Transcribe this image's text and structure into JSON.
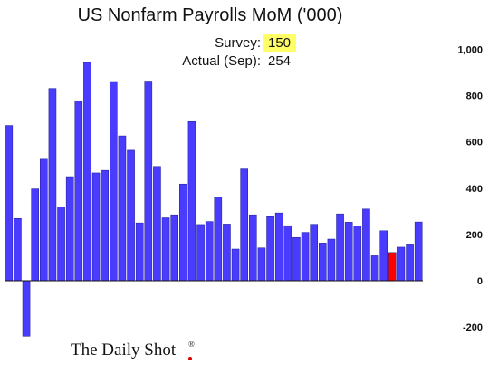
{
  "chart_data": {
    "type": "bar",
    "title": "US Nonfarm Payrolls MoM ('000)",
    "xlabel": "",
    "ylabel": "",
    "ylim": [
      -250,
      1050
    ],
    "yticks": [
      -200,
      0,
      200,
      400,
      600,
      800,
      1000
    ],
    "ytick_labels": [
      "-200",
      "0",
      "200",
      "400",
      "600",
      "800",
      "1,000"
    ],
    "y_axis_position": "right",
    "grid": false,
    "legend": "none",
    "bar_color": "#4a3cff",
    "highlight_color": "#ff0000",
    "highlight_index": 44,
    "values": [
      671,
      269,
      -240,
      397,
      525,
      831,
      319,
      450,
      778,
      943,
      466,
      477,
      861,
      626,
      564,
      250,
      863,
      494,
      272,
      285,
      418,
      688,
      243,
      256,
      361,
      245,
      137,
      483,
      285,
      142,
      277,
      293,
      238,
      187,
      209,
      244,
      163,
      180,
      289,
      253,
      236,
      310,
      108,
      216,
      122,
      145,
      159,
      254
    ]
  },
  "annotations": {
    "survey_label": "Survey:",
    "survey_value": "150",
    "survey_highlight": "#ffff66",
    "actual_label": "Actual (Sep):",
    "actual_value": "254"
  },
  "branding": {
    "text": "The Daily Shot",
    "mark": "®",
    "dot_color": "#e00000"
  }
}
